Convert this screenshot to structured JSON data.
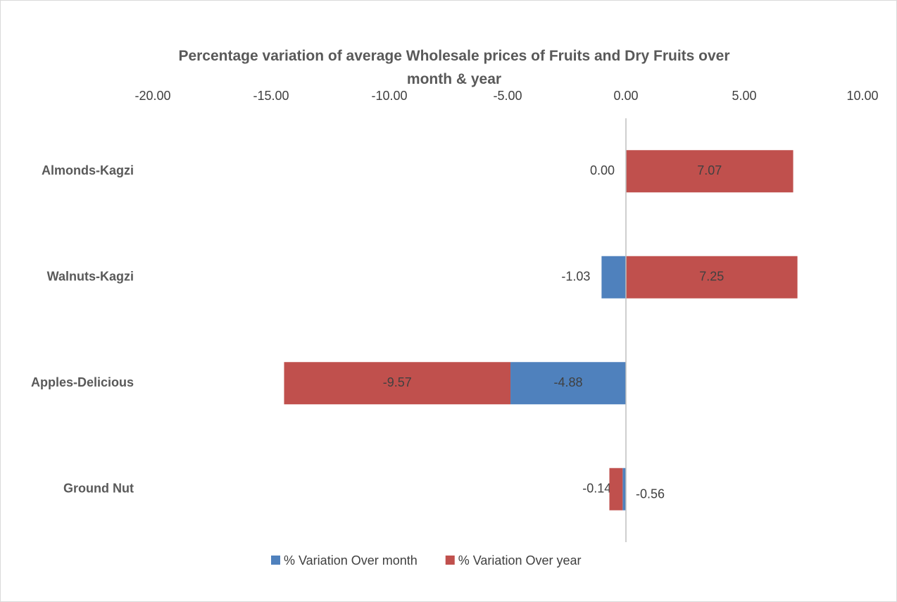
{
  "chart_data": {
    "type": "stacked_barh",
    "title": "Percentage variation of average Wholesale prices of Fruits and Dry Fruits  over month & year",
    "categories": [
      "Almonds-Kagzi",
      "Walnuts-Kagzi",
      "Apples-Delicious",
      "Ground Nut"
    ],
    "series": [
      {
        "name": "% Variation Over month",
        "color": "#4f81bd",
        "values": [
          0,
          -1.03,
          -4.88,
          -0.14
        ],
        "value_labels": [
          "0.00",
          "-1.03",
          "-4.88",
          "-0.14"
        ]
      },
      {
        "name": "% Variation Over year",
        "color": "#c0504d",
        "values": [
          7.07,
          7.25,
          -9.57,
          -0.56
        ],
        "value_labels": [
          "7.07",
          "7.25",
          "-9.57",
          "-0.56"
        ]
      }
    ],
    "xlim": [
      -20,
      10
    ],
    "xticks": [
      {
        "value": -20,
        "label": "-20.00"
      },
      {
        "value": -15,
        "label": "-15.00"
      },
      {
        "value": -10,
        "label": "-10.00"
      },
      {
        "value": -5,
        "label": "-5.00"
      },
      {
        "value": 0,
        "label": "0.00"
      },
      {
        "value": 5,
        "label": "5.00"
      },
      {
        "value": 10,
        "label": "10.00"
      }
    ],
    "legend": "bottom"
  }
}
